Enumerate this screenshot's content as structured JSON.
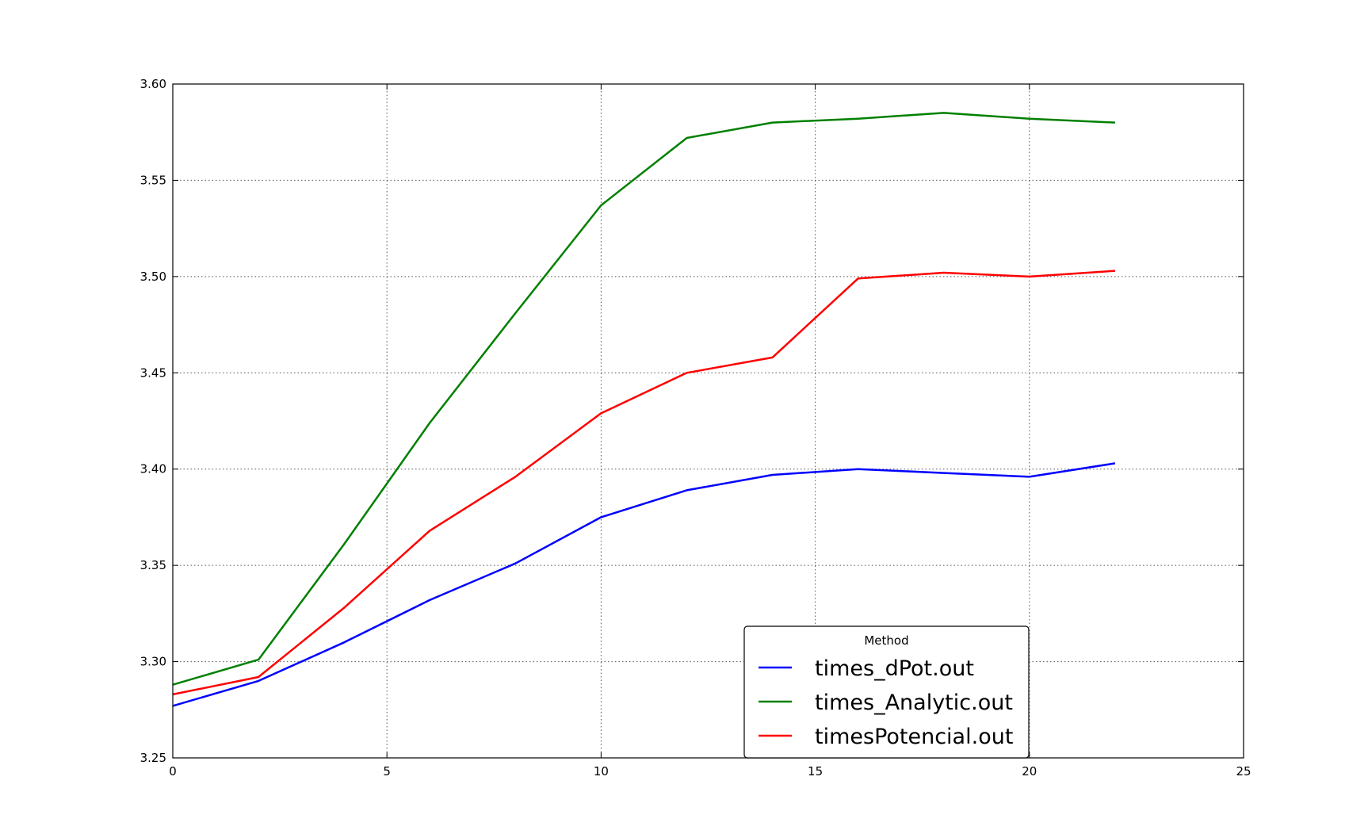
{
  "chart_data": {
    "type": "line",
    "title": "",
    "xlabel": "",
    "ylabel": "",
    "xlim": [
      0,
      25
    ],
    "ylim": [
      3.25,
      3.6
    ],
    "xticks": [
      0,
      5,
      10,
      15,
      20,
      25
    ],
    "yticks": [
      3.25,
      3.3,
      3.35,
      3.4,
      3.45,
      3.5,
      3.55,
      3.6
    ],
    "xtick_labels": [
      "0",
      "5",
      "10",
      "15",
      "20",
      "25"
    ],
    "ytick_labels": [
      "3.25",
      "3.30",
      "3.35",
      "3.40",
      "3.45",
      "3.50",
      "3.55",
      "3.60"
    ],
    "grid": true,
    "legend": {
      "title": "Method",
      "placement": "lower-center-right"
    },
    "x": [
      0,
      2,
      4,
      6,
      8,
      10,
      12,
      14,
      16,
      18,
      20,
      22
    ],
    "series": [
      {
        "name": "times_dPot.out",
        "color": "#0000ff",
        "values": [
          3.277,
          3.29,
          3.31,
          3.332,
          3.351,
          3.375,
          3.389,
          3.397,
          3.4,
          3.398,
          3.396,
          3.403
        ]
      },
      {
        "name": "times_Analytic.out",
        "color": "#008000",
        "values": [
          3.288,
          3.301,
          3.361,
          3.424,
          3.481,
          3.537,
          3.572,
          3.58,
          3.582,
          3.585,
          3.582,
          3.58
        ]
      },
      {
        "name": "timesPotencial.out",
        "color": "#ff0000",
        "values": [
          3.283,
          3.292,
          3.328,
          3.368,
          3.396,
          3.429,
          3.45,
          3.458,
          3.499,
          3.502,
          3.5,
          3.503
        ]
      }
    ]
  }
}
